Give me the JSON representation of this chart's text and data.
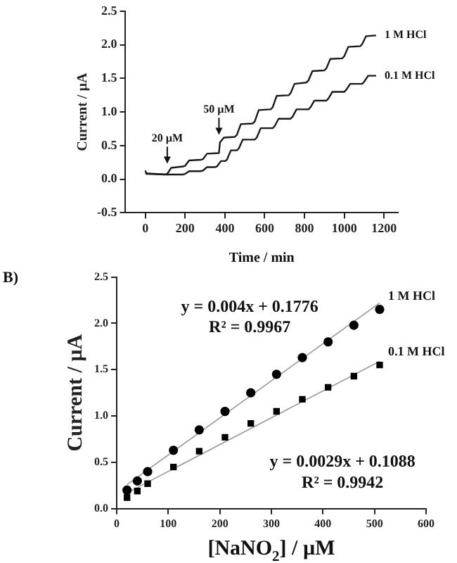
{
  "chart_data": [
    {
      "type": "line",
      "xlabel": "Time / min",
      "ylabel": "Current / µA",
      "xlim": [
        -100,
        1270
      ],
      "xticks": [
        0,
        200,
        400,
        600,
        800,
        1000,
        1200
      ],
      "ylim": [
        -0.5,
        2.5
      ],
      "yticks": [
        -0.5,
        {
          "value": 0,
          "label": "0.0"
        },
        0.5,
        {
          "value": 1,
          "label": "1.0"
        },
        1.5,
        {
          "value": 2,
          "label": "2.0"
        },
        2.5
      ],
      "grid": false,
      "legend": false,
      "marker": "none",
      "series": [
        {
          "name": "1 M HCl",
          "color": "#1a1a1a",
          "x": [
            0,
            5,
            100,
            110,
            130,
            190,
            200,
            220,
            280,
            290,
            310,
            370,
            375,
            395,
            450,
            460,
            480,
            540,
            550,
            570,
            630,
            640,
            660,
            720,
            730,
            750,
            810,
            820,
            840,
            900,
            910,
            930,
            990,
            1000,
            1020,
            1080,
            1090,
            1110,
            1160
          ],
          "values": [
            0.13,
            0.08,
            0.07,
            0.08,
            0.17,
            0.19,
            0.2,
            0.28,
            0.29,
            0.3,
            0.38,
            0.39,
            0.55,
            0.62,
            0.63,
            0.66,
            0.82,
            0.83,
            0.86,
            1.03,
            1.04,
            1.07,
            1.24,
            1.25,
            1.28,
            1.42,
            1.44,
            1.47,
            1.61,
            1.62,
            1.65,
            1.79,
            1.8,
            1.83,
            1.97,
            1.98,
            2.01,
            2.13,
            2.14
          ]
        },
        {
          "name": "0.1 M HCl",
          "color": "#1a1a1a",
          "x": [
            0,
            100,
            190,
            200,
            220,
            280,
            290,
            310,
            350,
            360,
            380,
            400,
            410,
            430,
            460,
            470,
            490,
            550,
            560,
            580,
            640,
            650,
            670,
            730,
            740,
            760,
            820,
            830,
            850,
            910,
            920,
            940,
            1000,
            1010,
            1030,
            1090,
            1100,
            1120,
            1160
          ],
          "values": [
            0.09,
            0.07,
            0.07,
            0.08,
            0.12,
            0.12,
            0.13,
            0.18,
            0.18,
            0.19,
            0.27,
            0.27,
            0.29,
            0.43,
            0.43,
            0.46,
            0.59,
            0.59,
            0.62,
            0.76,
            0.76,
            0.79,
            0.9,
            0.9,
            0.93,
            1.04,
            1.04,
            1.07,
            1.17,
            1.17,
            1.2,
            1.3,
            1.3,
            1.33,
            1.42,
            1.42,
            1.45,
            1.54,
            1.54
          ]
        }
      ],
      "annotations": [
        {
          "text": "20 µM",
          "x": 110,
          "y": 0.17
        },
        {
          "text": "50 µM",
          "x": 370,
          "y": 0.6
        }
      ]
    },
    {
      "type": "scatter",
      "xlabel": "[NaNO$_{2}$] / µM",
      "ylabel": "Current / µA",
      "xlim": [
        0,
        600
      ],
      "xticks": [
        0,
        100,
        200,
        300,
        400,
        500,
        600
      ],
      "ylim": [
        0,
        2.5
      ],
      "yticks": [
        {
          "value": 0,
          "label": "0.0"
        },
        0.5,
        {
          "value": 1,
          "label": "1.0"
        },
        1.5,
        {
          "value": 2,
          "label": "2.0"
        },
        2.5
      ],
      "grid": false,
      "legend": false,
      "series": [
        {
          "name": "1 M HCl",
          "color": "#000000",
          "marker": "circle",
          "x": [
            20,
            40,
            60,
            110,
            160,
            210,
            260,
            310,
            360,
            410,
            460,
            510
          ],
          "values": [
            0.2,
            0.3,
            0.4,
            0.63,
            0.85,
            1.05,
            1.25,
            1.45,
            1.63,
            1.8,
            1.98,
            2.15
          ]
        },
        {
          "name": "0.1 M HCl",
          "color": "#000000",
          "marker": "square",
          "x": [
            20,
            40,
            60,
            110,
            160,
            210,
            260,
            310,
            360,
            410,
            460,
            510
          ],
          "values": [
            0.12,
            0.19,
            0.27,
            0.45,
            0.62,
            0.77,
            0.92,
            1.05,
            1.18,
            1.31,
            1.43,
            1.55
          ]
        },
        {
          "type": "line",
          "color": "#999999",
          "marker": "none",
          "x": [
            20,
            510
          ],
          "values": [
            0.26,
            2.22
          ]
        },
        {
          "type": "line",
          "color": "#999999",
          "marker": "none",
          "x": [
            20,
            510
          ],
          "values": [
            0.17,
            1.59
          ]
        }
      ],
      "annotations": [
        "B)",
        "y = 0.004x + 0.1776",
        "R² = 0.9967",
        "y = 0.0029x + 0.1088",
        "R² = 0.9942"
      ]
    }
  ]
}
